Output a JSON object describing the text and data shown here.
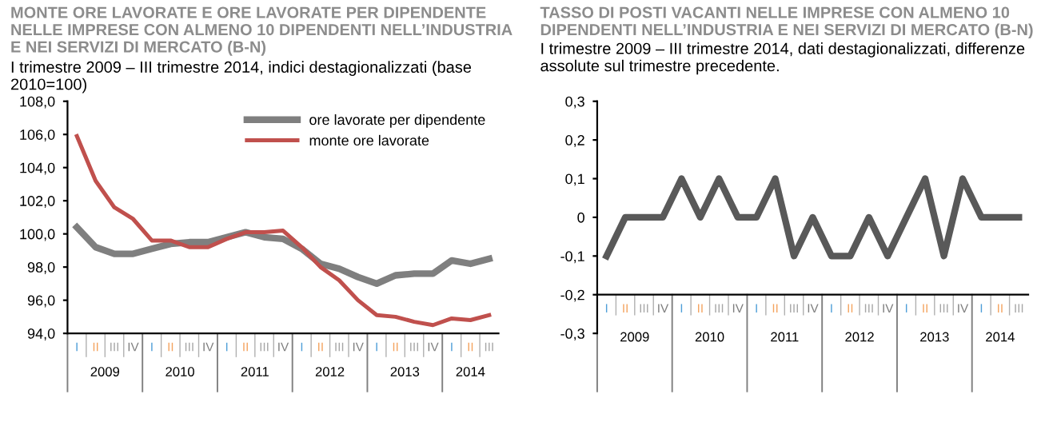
{
  "chart_data": [
    {
      "type": "line",
      "title": "MONTE ORE LAVORATE E ORE LAVORATE PER DIPENDENTE NELLE IMPRESE CON ALMENO 10 DIPENDENTI NELL’INDUSTRIA E NEI SERVIZI DI MERCATO (B-N)",
      "subtitle": "I trimestre 2009 – III trimestre 2014, indici destagionalizzati (base 2010=100)",
      "categories": [
        "I",
        "II",
        "III",
        "IV",
        "I",
        "II",
        "III",
        "IV",
        "I",
        "II",
        "III",
        "IV",
        "I",
        "II",
        "III",
        "IV",
        "I",
        "II",
        "III",
        "IV",
        "I",
        "II",
        "III"
      ],
      "annotations": [
        "2009",
        "2010",
        "2011",
        "2012",
        "2013",
        "2014"
      ],
      "series": [
        {
          "name": "ore lavorate per dipendente",
          "color": "#7f7f7f",
          "values": [
            100.4,
            99.2,
            98.8,
            98.8,
            99.1,
            99.4,
            99.5,
            99.5,
            99.8,
            100.1,
            99.8,
            99.7,
            99.1,
            98.2,
            97.9,
            97.4,
            97.0,
            97.5,
            97.6,
            97.6,
            98.4,
            98.2,
            98.5
          ]
        },
        {
          "name": "monte ore lavorate",
          "color": "#c0504d",
          "values": [
            105.9,
            103.2,
            101.6,
            100.9,
            99.6,
            99.6,
            99.2,
            99.2,
            99.7,
            100.1,
            100.1,
            100.2,
            99.2,
            98.0,
            97.2,
            96.0,
            95.1,
            95.0,
            94.7,
            94.5,
            94.9,
            94.8,
            95.1
          ]
        }
      ],
      "ylim": [
        94,
        108
      ],
      "yticks": [
        {
          "value": 94,
          "label": "94,0"
        },
        {
          "value": 96,
          "label": "96,0"
        },
        {
          "value": 98,
          "label": "98,0"
        },
        {
          "value": 100,
          "label": "100,0"
        },
        {
          "value": 102,
          "label": "102,0"
        },
        {
          "value": 104,
          "label": "104,0"
        },
        {
          "value": 106,
          "label": "106,0"
        },
        {
          "value": 108,
          "label": "108,0"
        }
      ],
      "grid": false,
      "legend": "top right"
    },
    {
      "type": "line",
      "title": "TASSO DI POSTI VACANTI NELLE IMPRESE CON ALMENO 10 DIPENDENTI NELL’INDUSTRIA E NEI SERVIZI DI MERCATO (B-N)",
      "subtitle": "I trimestre 2009 – III trimestre 2014, dati destagionalizzati, differenze assolute sul trimestre precedente.",
      "categories": [
        "I",
        "II",
        "III",
        "IV",
        "I",
        "II",
        "III",
        "IV",
        "I",
        "II",
        "III",
        "IV",
        "I",
        "II",
        "III",
        "IV",
        "I",
        "II",
        "III",
        "IV",
        "I",
        "II",
        "III"
      ],
      "annotations": [
        "2009",
        "2010",
        "2011",
        "2012",
        "2013",
        "2014"
      ],
      "series": [
        {
          "color": "#595959",
          "values": [
            -0.1,
            0,
            0,
            0,
            0.1,
            0,
            0.1,
            0,
            0,
            0.1,
            -0.1,
            0,
            -0.1,
            -0.1,
            0,
            -0.1,
            0,
            0.1,
            -0.1,
            0.1,
            0,
            0,
            0
          ]
        }
      ],
      "ylim": [
        -0.3,
        0.3
      ],
      "yticks": [
        {
          "value": -0.3,
          "label": "-0,3"
        },
        {
          "value": -0.2,
          "label": "-0,2"
        },
        {
          "value": -0.1,
          "label": "-0,1"
        },
        0,
        {
          "value": 0.1,
          "label": "0,1"
        },
        {
          "value": 0.2,
          "label": "0,2"
        },
        {
          "value": 0.3,
          "label": "0,3"
        }
      ],
      "grid": false,
      "legend": false
    }
  ]
}
